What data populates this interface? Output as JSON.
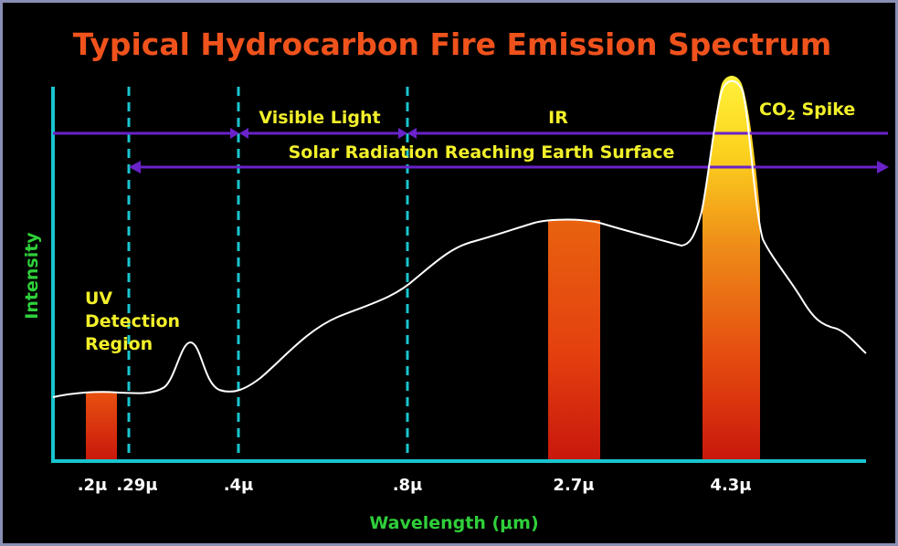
{
  "title": "Typical Hydrocarbon Fire Emission Spectrum",
  "y_axis_label": "Intensity",
  "x_axis_label": "Wavelength (μm)",
  "regions": {
    "visible": "Visible Light",
    "ir": "IR",
    "solar": "Solar Radiation Reaching Earth Surface",
    "uv_line1": "UV",
    "uv_line2": "Detection",
    "uv_line3": "Region",
    "co2_prefix": "CO",
    "co2_sub": "2",
    "co2_suffix": " Spike"
  },
  "ticks": [
    ".2μ",
    ".29μ",
    ".4μ",
    ".8μ",
    "2.7μ",
    "4.3μ"
  ],
  "colors": {
    "background": "#000000",
    "title": "#f0521c",
    "axis": "#19c5cf",
    "arrow": "#6a22c9",
    "labels": "#f2f02a",
    "axis_label": "#2fcf3a",
    "curve": "#ffffff"
  }
}
